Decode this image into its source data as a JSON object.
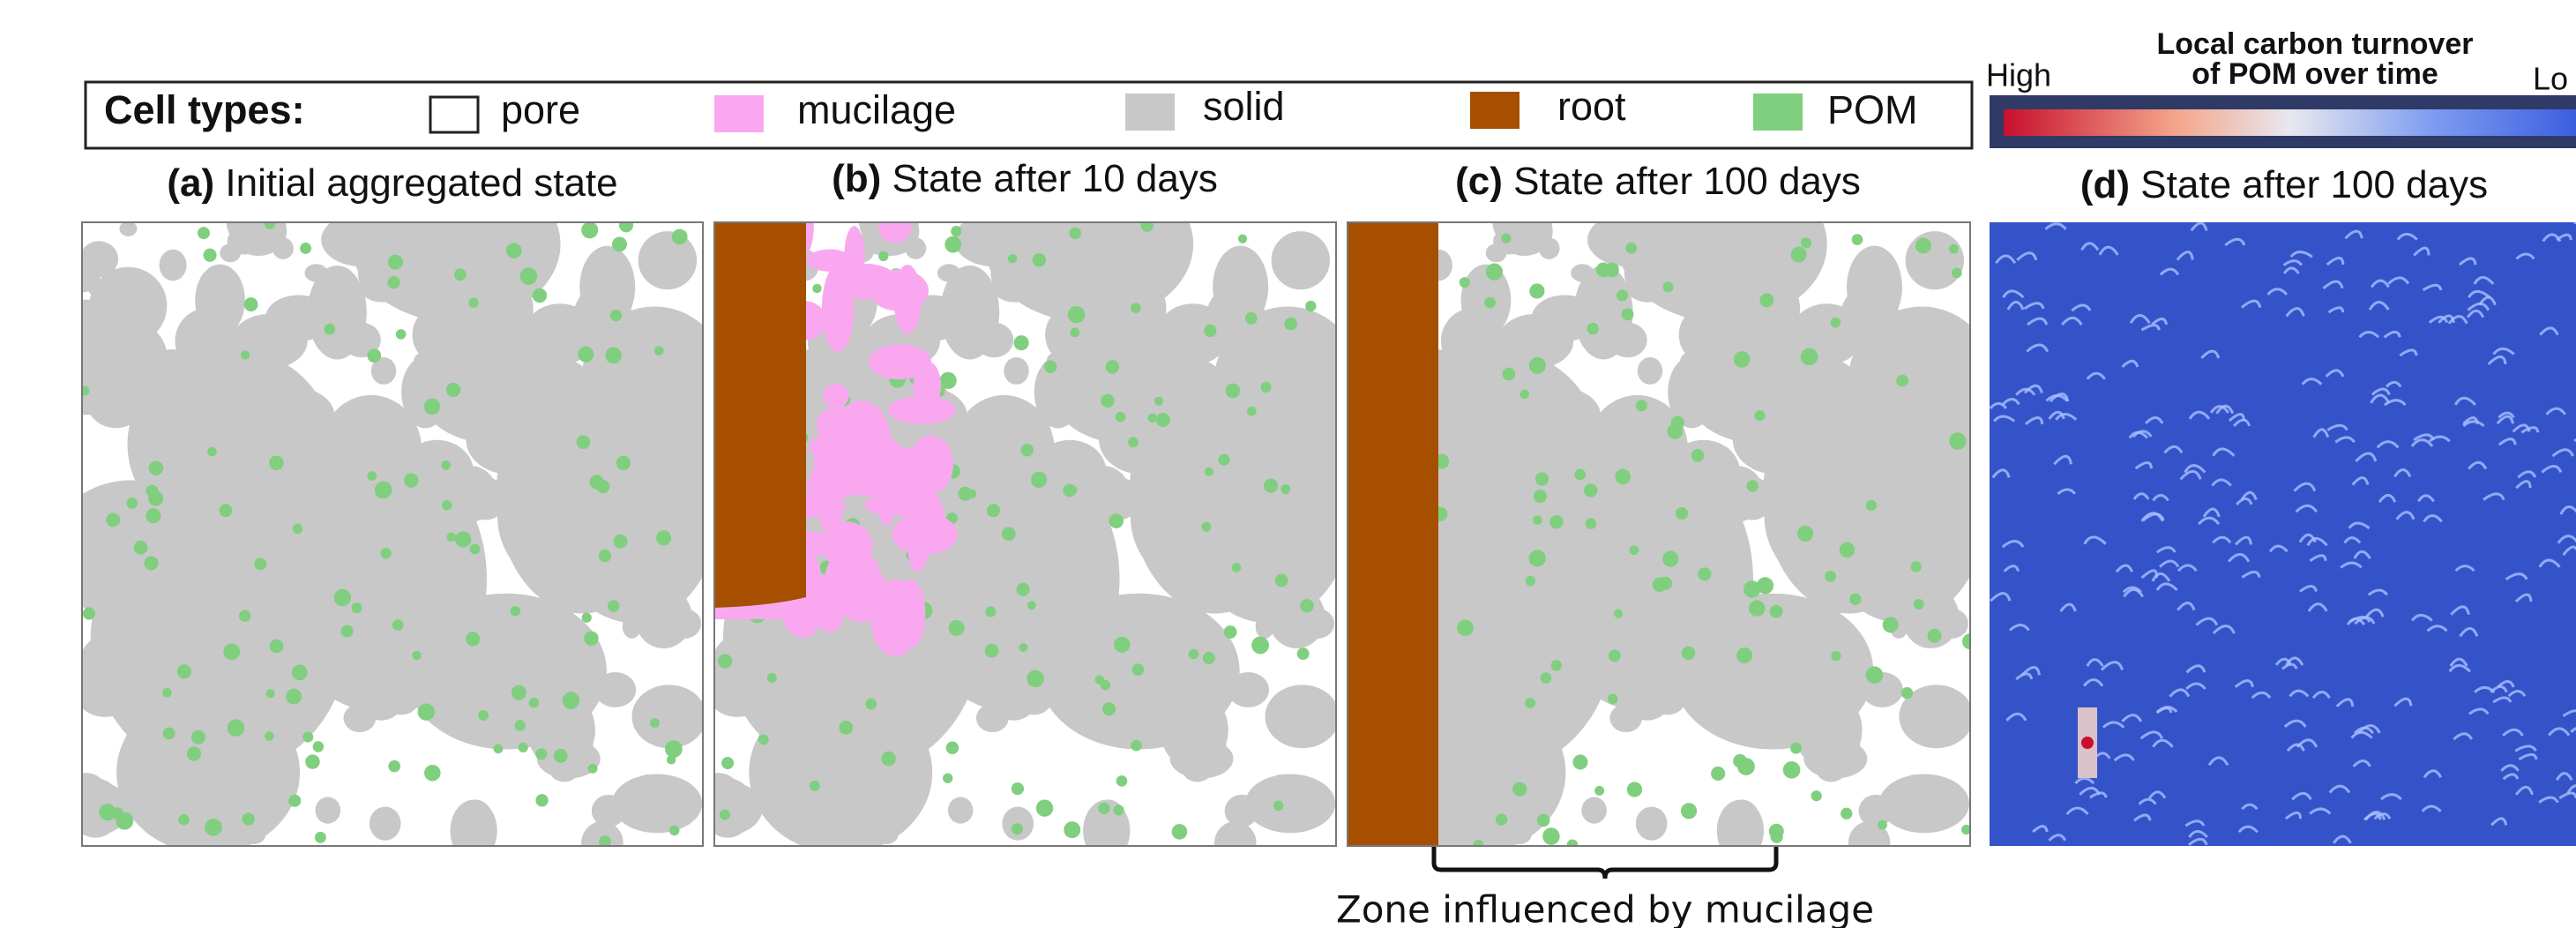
{
  "legend": {
    "title": "Cell types:",
    "items": [
      "pore",
      "mucilage",
      "solid",
      "root",
      "POM"
    ]
  },
  "colorbar": {
    "title_line1": "Local carbon turnover",
    "title_line2": "of POM over time",
    "high": "High",
    "low": "Lo"
  },
  "panels": [
    {
      "letter": "(a)",
      "title": "Initial aggregated state"
    },
    {
      "letter": "(b)",
      "title": "State after 10 days"
    },
    {
      "letter": "(c)",
      "title": "State after 100 days"
    },
    {
      "letter": "(d)",
      "title": "State after 100 days"
    }
  ],
  "annotation": "Zone influenced by mucilage"
}
